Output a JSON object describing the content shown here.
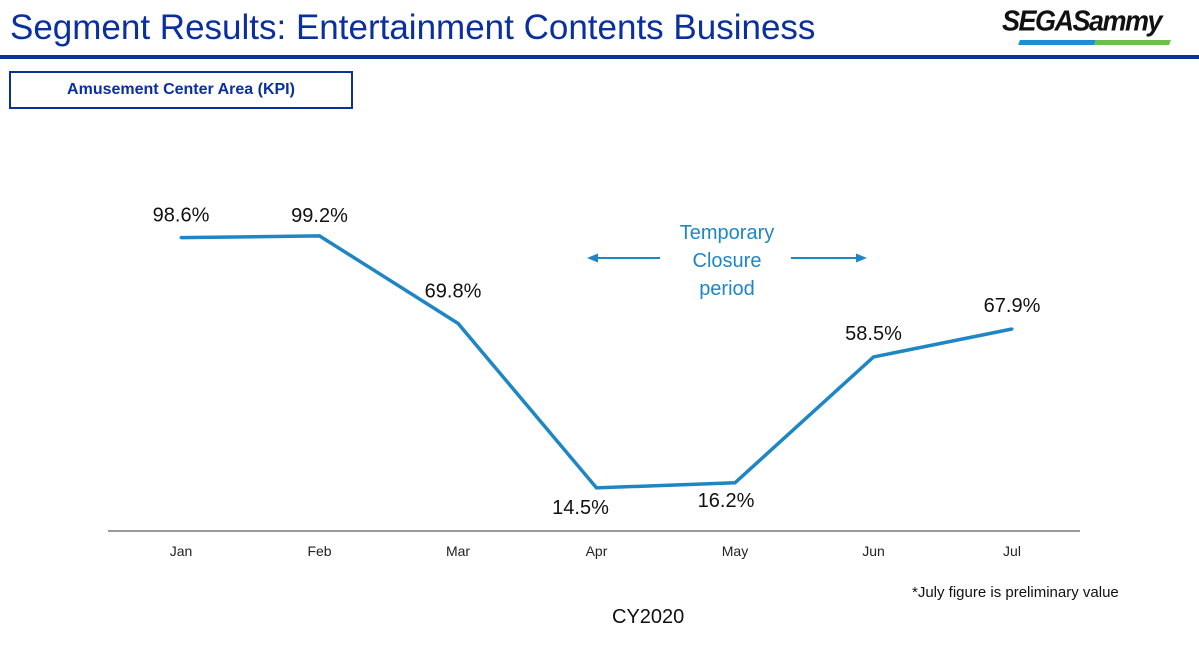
{
  "header": {
    "title": "Segment Results: Entertainment Contents Business",
    "logo_text": "SEGASammy"
  },
  "section_label": "Amusement Center Area (KPI)",
  "footnote": "*July figure is preliminary value",
  "colors": {
    "title": "#0a2f9e",
    "rule": "#0a3296",
    "line": "#1f86c6",
    "axis": "#9a9a9a"
  },
  "chart_data": {
    "type": "line",
    "title": "Amusement Center Area (KPI)",
    "xlabel": "CY2020",
    "ylabel": "",
    "categories": [
      "Jan",
      "Feb",
      "Mar",
      "Apr",
      "May",
      "Jun",
      "Jul"
    ],
    "series": [
      {
        "name": "KPI",
        "values": [
          98.6,
          99.2,
          69.8,
          14.5,
          16.2,
          58.5,
          67.9
        ],
        "labels": [
          "98.6%",
          "99.2%",
          "69.8%",
          "14.5%",
          "16.2%",
          "58.5%",
          "67.9%"
        ]
      }
    ],
    "ylim": [
      0,
      100
    ],
    "grid": false,
    "legend": "none",
    "annotations": [
      {
        "text": "Temporary Closure period",
        "lines": [
          "Temporary",
          "Closure",
          "period"
        ],
        "span": [
          "Apr",
          "Jun"
        ]
      }
    ]
  }
}
